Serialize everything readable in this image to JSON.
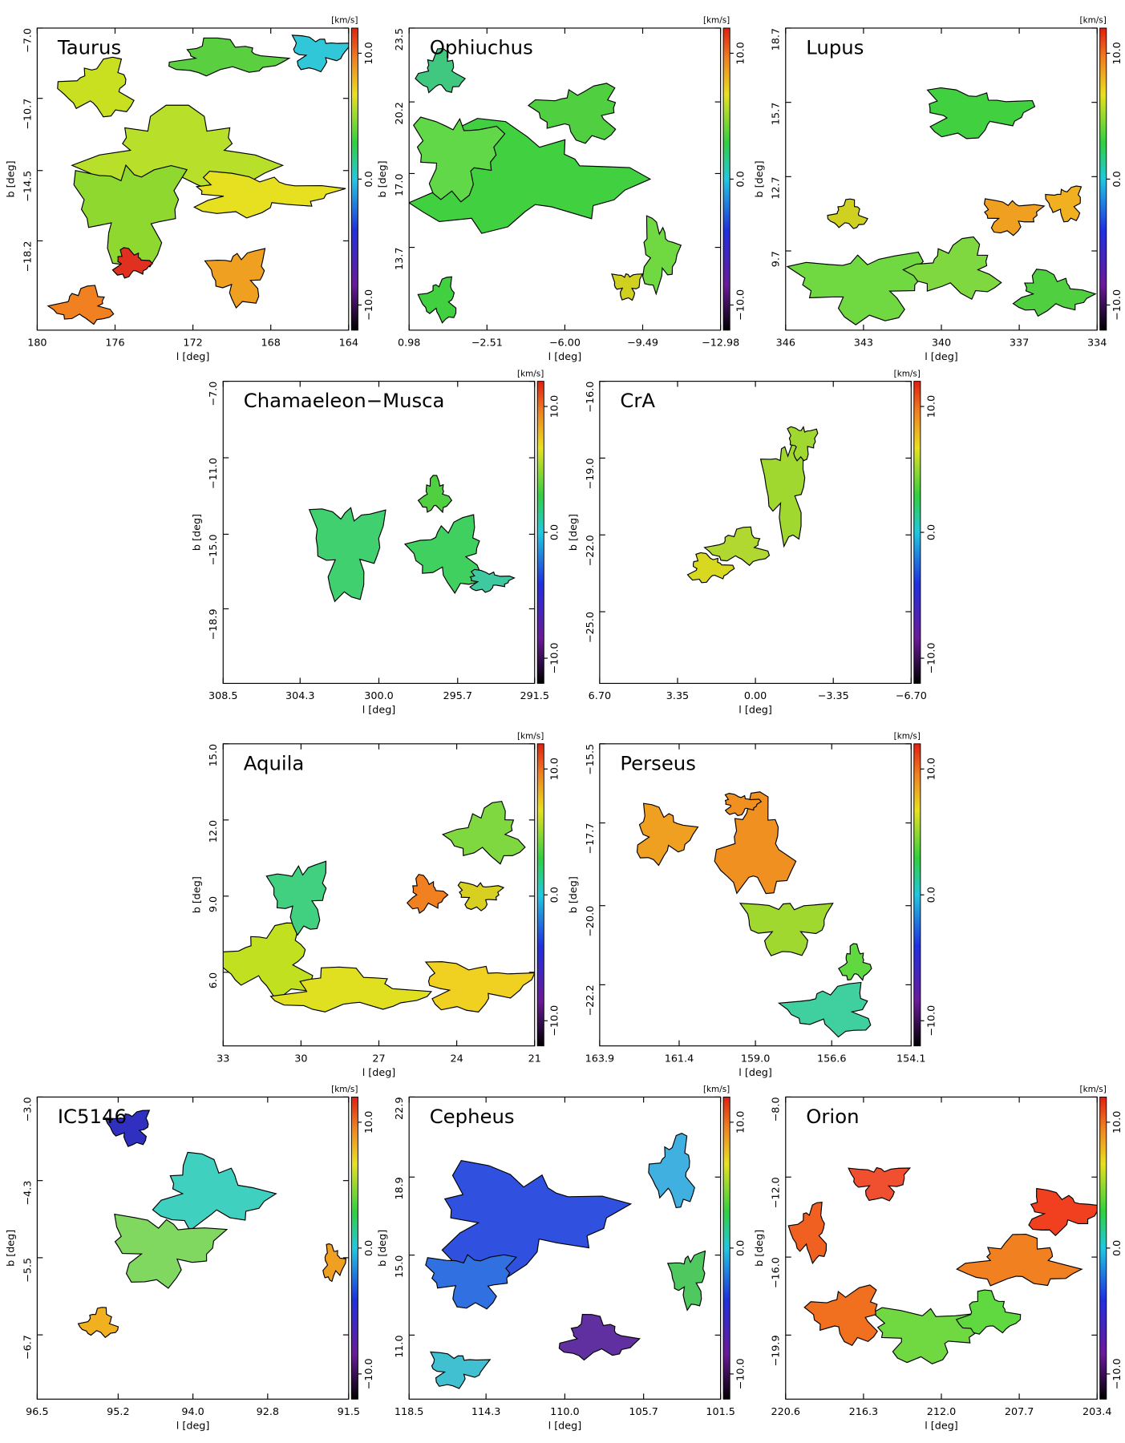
{
  "chart_data": [
    {
      "type": "map",
      "title": "Taurus",
      "xlabel": "l [deg]",
      "ylabel": "b [deg]",
      "colorbar_label": "[km/s]",
      "xlim": [
        180,
        164
      ],
      "xticks": [
        180,
        176,
        172,
        168,
        164
      ],
      "ylim": [
        -7,
        -22.9
      ],
      "yticks": [
        {
          "value": -7,
          "label": "−7.0"
        },
        {
          "value": -10.7,
          "label": "−10.7"
        },
        {
          "value": -14.5,
          "label": "−14.5"
        },
        {
          "value": -18.2,
          "label": "−18.2"
        }
      ],
      "clim": [
        -12,
        12
      ],
      "cticks": [
        {
          "value": 10,
          "label": "10.0"
        },
        {
          "value": 0,
          "label": "0.0"
        },
        {
          "value": -10,
          "label": "−10.0"
        }
      ]
    },
    {
      "type": "map",
      "title": "Ophiuchus",
      "xlabel": "l [deg]",
      "ylabel": "b [deg]",
      "colorbar_label": "[km/s]",
      "xlim": [
        0.98,
        -12.98
      ],
      "xticks": [
        0.98,
        {
          "value": -2.51,
          "label": "−2.51"
        },
        {
          "value": -6,
          "label": "−6.00"
        },
        {
          "value": -9.49,
          "label": "−9.49"
        },
        {
          "value": -12.98,
          "label": "−12.98"
        }
      ],
      "ylim": [
        23.5,
        10.0
      ],
      "yticks": [
        23.5,
        20.2,
        {
          "value": 17,
          "label": "17.0"
        },
        13.7
      ],
      "clim": [
        -12,
        12
      ],
      "cticks": [
        {
          "value": 10,
          "label": "10.0"
        },
        {
          "value": 0,
          "label": "0.0"
        },
        {
          "value": -10,
          "label": "−10.0"
        }
      ]
    },
    {
      "type": "map",
      "title": "Lupus",
      "xlabel": "l [deg]",
      "ylabel": "b [deg]",
      "colorbar_label": "[km/s]",
      "xlim": [
        346,
        334
      ],
      "xticks": [
        346,
        343,
        340,
        337,
        334
      ],
      "ylim": [
        18.7,
        6.5
      ],
      "yticks": [
        18.7,
        15.7,
        12.7,
        9.7
      ],
      "clim": [
        -12,
        12
      ],
      "cticks": [
        {
          "value": 10,
          "label": "10.0"
        },
        {
          "value": 0,
          "label": "0.0"
        },
        {
          "value": -10,
          "label": "−10.0"
        }
      ]
    },
    {
      "type": "map",
      "title": "Chamaeleon−Musca",
      "xlabel": "l [deg]",
      "ylabel": "b [deg]",
      "colorbar_label": "[km/s]",
      "xlim": [
        308.5,
        291.5
      ],
      "xticks": [
        308.5,
        304.3,
        {
          "value": 300,
          "label": "300.0"
        },
        295.7,
        291.5
      ],
      "ylim": [
        -7,
        -22.8
      ],
      "yticks": [
        {
          "value": -7,
          "label": "−7.0"
        },
        {
          "value": -11,
          "label": "−11.0"
        },
        {
          "value": -15,
          "label": "−15.0"
        },
        {
          "value": -18.9,
          "label": "−18.9"
        }
      ],
      "clim": [
        -12,
        12
      ],
      "cticks": [
        {
          "value": 10,
          "label": "10.0"
        },
        {
          "value": 0,
          "label": "0.0"
        },
        {
          "value": -10,
          "label": "−10.0"
        }
      ]
    },
    {
      "type": "map",
      "title": "CrA",
      "xlabel": "l [deg]",
      "ylabel": "b [deg]",
      "colorbar_label": "[km/s]",
      "xlim": [
        6.7,
        -6.7
      ],
      "xticks": [
        {
          "value": 6.7,
          "label": "6.70"
        },
        3.35,
        {
          "value": 0,
          "label": "0.00"
        },
        {
          "value": -3.35,
          "label": "−3.35"
        },
        {
          "value": -6.7,
          "label": "−6.70"
        }
      ],
      "ylim": [
        -16,
        -27.8
      ],
      "yticks": [
        {
          "value": -16,
          "label": "−16.0"
        },
        {
          "value": -19,
          "label": "−19.0"
        },
        {
          "value": -22,
          "label": "−22.0"
        },
        {
          "value": -25,
          "label": "−25.0"
        }
      ],
      "clim": [
        -12,
        12
      ],
      "cticks": [
        {
          "value": 10,
          "label": "10.0"
        },
        {
          "value": 0,
          "label": "0.0"
        },
        {
          "value": -10,
          "label": "−10.0"
        }
      ]
    },
    {
      "type": "map",
      "title": "Aquila",
      "xlabel": "l [deg]",
      "ylabel": "b [deg]",
      "colorbar_label": "[km/s]",
      "xlim": [
        33,
        21
      ],
      "xticks": [
        33,
        30,
        27,
        24,
        21
      ],
      "ylim": [
        15,
        3.1
      ],
      "yticks": [
        {
          "value": 15,
          "label": "15.0"
        },
        {
          "value": 12,
          "label": "12.0"
        },
        {
          "value": 9,
          "label": "9.0"
        },
        {
          "value": 6,
          "label": "6.0"
        }
      ],
      "clim": [
        -12,
        12
      ],
      "cticks": [
        {
          "value": 10,
          "label": "10.0"
        },
        {
          "value": 0,
          "label": "0.0"
        },
        {
          "value": -10,
          "label": "−10.0"
        }
      ]
    },
    {
      "type": "map",
      "title": "Perseus",
      "xlabel": "l [deg]",
      "ylabel": "b [deg]",
      "colorbar_label": "[km/s]",
      "xlim": [
        163.9,
        154.1
      ],
      "xticks": [
        163.9,
        161.4,
        {
          "value": 159,
          "label": "159.0"
        },
        156.6,
        154.1
      ],
      "ylim": [
        -15.5,
        -23.9
      ],
      "yticks": [
        {
          "value": -15.5,
          "label": "−15.5"
        },
        {
          "value": -17.7,
          "label": "−17.7"
        },
        {
          "value": -20,
          "label": "−20.0"
        },
        {
          "value": -22.2,
          "label": "−22.2"
        }
      ],
      "clim": [
        -12,
        12
      ],
      "cticks": [
        {
          "value": 10,
          "label": "10.0"
        },
        {
          "value": 0,
          "label": "0.0"
        },
        {
          "value": -10,
          "label": "−10.0"
        }
      ]
    },
    {
      "type": "map",
      "title": "IC5146",
      "xlabel": "l [deg]",
      "ylabel": "b [deg]",
      "colorbar_label": "[km/s]",
      "xlim": [
        96.5,
        91.5
      ],
      "xticks": [
        96.5,
        95.2,
        {
          "value": 94,
          "label": "94.0"
        },
        92.8,
        91.5
      ],
      "ylim": [
        -3,
        -7.7
      ],
      "yticks": [
        {
          "value": -3,
          "label": "−3.0"
        },
        {
          "value": -4.3,
          "label": "−4.3"
        },
        {
          "value": -5.5,
          "label": "−5.5"
        },
        {
          "value": -6.7,
          "label": "−6.7"
        }
      ],
      "clim": [
        -12,
        12
      ],
      "cticks": [
        {
          "value": 10,
          "label": "10.0"
        },
        {
          "value": 0,
          "label": "0.0"
        },
        {
          "value": -10,
          "label": "−10.0"
        }
      ]
    },
    {
      "type": "map",
      "title": "Cepheus",
      "xlabel": "l [deg]",
      "ylabel": "b [deg]",
      "colorbar_label": "[km/s]",
      "xlim": [
        118.5,
        101.5
      ],
      "xticks": [
        118.5,
        114.3,
        {
          "value": 110,
          "label": "110.0"
        },
        105.7,
        101.5
      ],
      "ylim": [
        22.9,
        7.8
      ],
      "yticks": [
        22.9,
        18.9,
        {
          "value": 15,
          "label": "15.0"
        },
        {
          "value": 11,
          "label": "11.0"
        }
      ],
      "clim": [
        -12,
        12
      ],
      "cticks": [
        {
          "value": 10,
          "label": "10.0"
        },
        {
          "value": 0,
          "label": "0.0"
        },
        {
          "value": -10,
          "label": "−10.0"
        }
      ]
    },
    {
      "type": "map",
      "title": "Orion",
      "xlabel": "l [deg]",
      "ylabel": "b [deg]",
      "colorbar_label": "[km/s]",
      "xlim": [
        220.6,
        203.4
      ],
      "xticks": [
        220.6,
        216.3,
        {
          "value": 212,
          "label": "212.0"
        },
        207.7,
        203.4
      ],
      "ylim": [
        -8,
        -23.1
      ],
      "yticks": [
        {
          "value": -8,
          "label": "−8.0"
        },
        {
          "value": -12,
          "label": "−12.0"
        },
        {
          "value": -16,
          "label": "−16.0"
        },
        {
          "value": -19.9,
          "label": "−19.9"
        }
      ],
      "clim": [
        -12,
        12
      ],
      "cticks": [
        {
          "value": 10,
          "label": "10.0"
        },
        {
          "value": 0,
          "label": "0.0"
        },
        {
          "value": -10,
          "label": "−10.0"
        }
      ]
    }
  ]
}
